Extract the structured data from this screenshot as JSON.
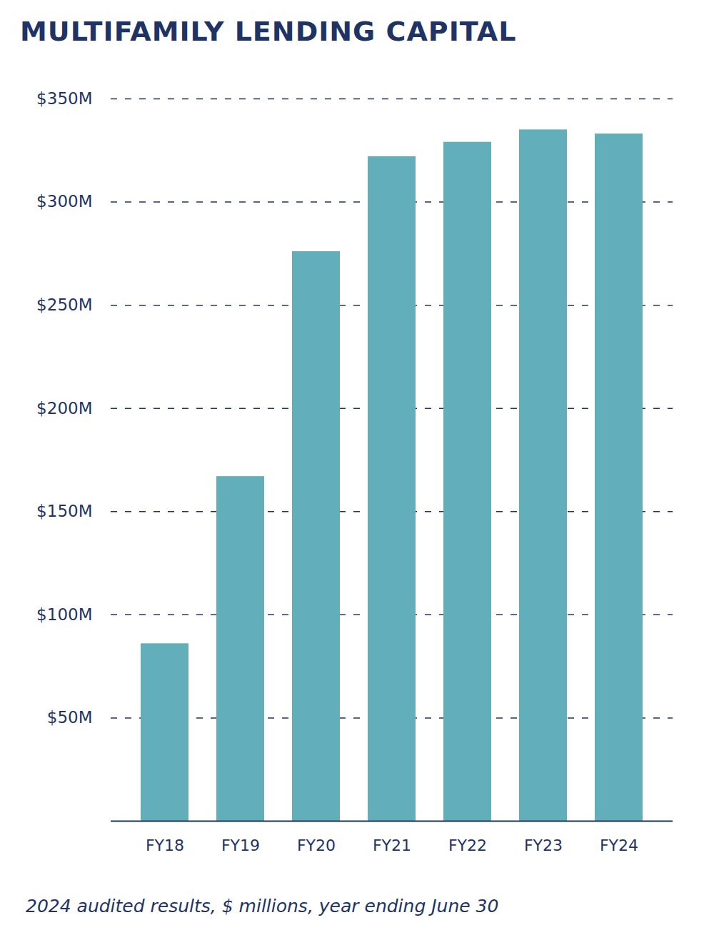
{
  "chart_data": {
    "type": "bar",
    "title": "MULTIFAMILY LENDING CAPITAL",
    "caption": "2024 audited results, $ millions, year ending June 30",
    "categories": [
      "FY18",
      "FY19",
      "FY20",
      "FY21",
      "FY22",
      "FY23",
      "FY24"
    ],
    "values": [
      86,
      167,
      276,
      322,
      329,
      335,
      333
    ],
    "color": "#62afbb",
    "ylim": [
      0,
      350
    ],
    "yticks": [
      {
        "value": 50,
        "label": "$50M"
      },
      {
        "value": 100,
        "label": "$100M"
      },
      {
        "value": 150,
        "label": "$150M"
      },
      {
        "value": 200,
        "label": "$200M"
      },
      {
        "value": 250,
        "label": "$250M"
      },
      {
        "value": 300,
        "label": "$300M"
      },
      {
        "value": 350,
        "label": "$350M"
      }
    ],
    "grid": true
  }
}
